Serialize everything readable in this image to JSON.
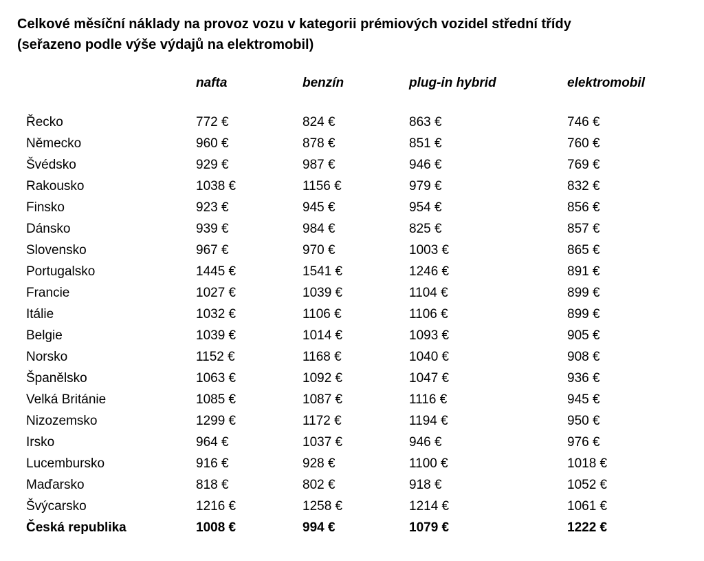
{
  "title": {
    "line1": "Celkové měsíční náklady na provoz vozu v kategorii prémiových vozidel střední třídy",
    "line2": "(seřazeno podle výše výdajů na elektromobil)"
  },
  "chart_data": {
    "type": "table",
    "title": "Celkové měsíční náklady na provoz vozu v kategorii prémiových vozidel střední třídy (seřazeno podle výše výdajů na elektromobil)",
    "unit": "€",
    "columns": [
      "nafta",
      "benzín",
      "plug-in hybrid",
      "elektromobil"
    ],
    "rows": [
      {
        "country": "Řecko",
        "values": [
          772,
          824,
          863,
          746
        ]
      },
      {
        "country": "Německo",
        "values": [
          960,
          878,
          851,
          760
        ]
      },
      {
        "country": "Švédsko",
        "values": [
          929,
          987,
          946,
          769
        ]
      },
      {
        "country": "Rakousko",
        "values": [
          1038,
          1156,
          979,
          832
        ]
      },
      {
        "country": "Finsko",
        "values": [
          923,
          945,
          954,
          856
        ]
      },
      {
        "country": "Dánsko",
        "values": [
          939,
          984,
          825,
          857
        ]
      },
      {
        "country": "Slovensko",
        "values": [
          967,
          970,
          1003,
          865
        ]
      },
      {
        "country": "Portugalsko",
        "values": [
          1445,
          1541,
          1246,
          891
        ]
      },
      {
        "country": "Francie",
        "values": [
          1027,
          1039,
          1104,
          899
        ]
      },
      {
        "country": "Itálie",
        "values": [
          1032,
          1106,
          1106,
          899
        ]
      },
      {
        "country": "Belgie",
        "values": [
          1039,
          1014,
          1093,
          905
        ]
      },
      {
        "country": "Norsko",
        "values": [
          1152,
          1168,
          1040,
          908
        ]
      },
      {
        "country": "Španělsko",
        "values": [
          1063,
          1092,
          1047,
          936
        ]
      },
      {
        "country": "Velká Británie",
        "values": [
          1085,
          1087,
          1116,
          945
        ]
      },
      {
        "country": "Nizozemsko",
        "values": [
          1299,
          1172,
          1194,
          950
        ]
      },
      {
        "country": "Irsko",
        "values": [
          964,
          1037,
          946,
          976
        ]
      },
      {
        "country": "Lucembursko",
        "values": [
          916,
          928,
          1100,
          1018
        ]
      },
      {
        "country": "Maďarsko",
        "values": [
          818,
          802,
          918,
          1052
        ]
      },
      {
        "country": "Švýcarsko",
        "values": [
          1216,
          1258,
          1214,
          1061
        ]
      },
      {
        "country": "Česká republika",
        "values": [
          1008,
          994,
          1079,
          1222
        ],
        "emphasis": true
      }
    ]
  }
}
